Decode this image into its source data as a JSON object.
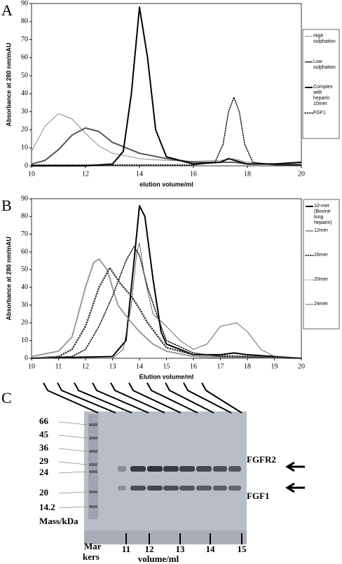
{
  "chart_data": [
    {
      "type": "line",
      "panel_label": "A",
      "y_label": "Absorbance at 280 nm/mAU",
      "x_label": "elution volume/ml",
      "xlim": [
        10,
        20
      ],
      "xticks": [
        10,
        12,
        14,
        16,
        18,
        20
      ],
      "ylim": [
        0,
        90
      ],
      "yticks": [
        0,
        10,
        20,
        30,
        40,
        50,
        60,
        70,
        80,
        90
      ],
      "legend": "right",
      "series": [
        {
          "name": "High sulphation",
          "color": "#8a8a8a",
          "width": 1,
          "style": "solid",
          "x": [
            10,
            10.5,
            11,
            11.5,
            12,
            12.5,
            13,
            14,
            15,
            16,
            17,
            17.5,
            18,
            19,
            20
          ],
          "values": [
            8,
            22,
            29,
            26,
            18,
            11,
            7,
            4,
            3,
            2.5,
            3,
            4,
            2,
            1,
            1
          ]
        },
        {
          "name": "Low sulphation",
          "color": "#555555",
          "width": 2,
          "style": "solid",
          "x": [
            10,
            10.5,
            11,
            11.5,
            12,
            12.5,
            13,
            14,
            15,
            16,
            17,
            17.5,
            18,
            19,
            20
          ],
          "values": [
            1,
            3,
            9,
            17,
            21,
            19,
            13,
            7,
            4,
            2,
            2,
            2,
            1,
            1,
            0.5
          ]
        },
        {
          "name": "Complex with heparin 10mer",
          "color": "#000000",
          "width": 2,
          "style": "solid",
          "x": [
            10,
            12,
            13,
            13.4,
            13.7,
            14,
            14.3,
            14.6,
            15,
            16,
            17,
            17.3,
            18,
            19,
            20
          ],
          "values": [
            0,
            0,
            1,
            8,
            40,
            88,
            60,
            20,
            5,
            1,
            2,
            4,
            1,
            1,
            2
          ]
        },
        {
          "name": "FGF1",
          "color": "#000000",
          "width": 1.5,
          "style": "dotted",
          "x": [
            10,
            16,
            16.8,
            17.1,
            17.3,
            17.5,
            17.7,
            17.9,
            18.2,
            19,
            20
          ],
          "values": [
            0.5,
            0.5,
            2,
            12,
            30,
            38,
            30,
            12,
            2,
            0.5,
            0.5
          ]
        }
      ]
    },
    {
      "type": "line",
      "panel_label": "B",
      "y_label": "Absorbance at 280 nm/mAU",
      "x_label": "Elution volume/ml",
      "xlim": [
        10,
        20
      ],
      "xticks": [
        10,
        11,
        12,
        13,
        14,
        15,
        16,
        17,
        18,
        19,
        20
      ],
      "ylim": [
        0,
        90
      ],
      "yticks": [
        0,
        10,
        20,
        30,
        40,
        50,
        60,
        70,
        80,
        90
      ],
      "legend": "right",
      "series": [
        {
          "name": "10-mer (Bovine lung heparin)",
          "color": "#000000",
          "width": 2,
          "style": "solid",
          "x": [
            10,
            13,
            13.5,
            13.8,
            14,
            14.2,
            14.5,
            14.8,
            15,
            16,
            17,
            17.5,
            18,
            19,
            20
          ],
          "values": [
            0,
            1,
            10,
            55,
            86,
            80,
            45,
            15,
            8,
            2,
            2,
            3,
            2,
            1,
            0
          ]
        },
        {
          "name": "12mer",
          "color": "#9a9a9a",
          "width": 2,
          "style": "solid",
          "x": [
            10,
            11,
            11.5,
            12,
            12.3,
            12.5,
            12.8,
            13.2,
            13.6,
            14,
            14.5,
            15,
            16,
            17,
            20
          ],
          "values": [
            1,
            4,
            12,
            40,
            54,
            56,
            50,
            30,
            22,
            15,
            8,
            4,
            1,
            0.5,
            0
          ]
        },
        {
          "name": "16mer",
          "color": "#000000",
          "width": 1.5,
          "style": "dotted",
          "x": [
            10,
            11.5,
            12,
            12.5,
            13,
            13.5,
            13.8,
            14,
            14.3,
            14.7,
            15,
            16,
            17,
            20
          ],
          "values": [
            0,
            1,
            5,
            18,
            35,
            55,
            63,
            58,
            40,
            22,
            10,
            3,
            1,
            0
          ]
        },
        {
          "name": "20mer",
          "color": "#333333",
          "width": 1.2,
          "style": "circles",
          "x": [
            10,
            11,
            11.5,
            12,
            12.5,
            12.9,
            13.3,
            13.7,
            14,
            14.3,
            14.7,
            15,
            16,
            20
          ],
          "values": [
            0,
            1,
            5,
            18,
            40,
            51,
            42,
            35,
            28,
            20,
            12,
            6,
            2,
            0
          ]
        },
        {
          "name": "24mer",
          "color": "#444444",
          "width": 0.8,
          "style": "solid",
          "x": [
            10,
            13,
            13.4,
            13.7,
            13.9,
            14,
            14.2,
            14.5,
            15,
            15.5,
            16,
            16.5,
            17,
            17.6,
            18,
            18.5,
            19,
            20
          ],
          "values": [
            0,
            0,
            5,
            30,
            60,
            65,
            45,
            25,
            18,
            10,
            5,
            8,
            18,
            20,
            15,
            5,
            1,
            0
          ]
        }
      ]
    }
  ],
  "gel": {
    "panel_label": "C",
    "marker_masses": [
      "66",
      "45",
      "36",
      "29",
      "24",
      "20",
      "14.2"
    ],
    "mass_label": "Mass/kDa",
    "band_labels": [
      "FGFR2",
      "FGF1"
    ],
    "marker_lane": [
      "Mar",
      "kers"
    ],
    "volumes": [
      "11",
      "12",
      "13",
      "14",
      "15"
    ],
    "volume_label": "volume/ml"
  }
}
